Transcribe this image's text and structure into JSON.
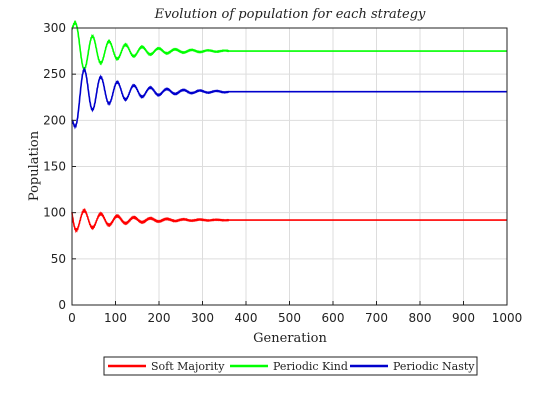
{
  "chart_data": {
    "type": "line",
    "title": "Evolution of population for each strategy",
    "xlabel": "Generation",
    "ylabel": "Population",
    "xlim": [
      0,
      1000
    ],
    "ylim": [
      0,
      300
    ],
    "x_ticks": [
      0,
      100,
      200,
      300,
      400,
      500,
      600,
      700,
      800,
      900,
      1000
    ],
    "y_ticks": [
      0,
      50,
      100,
      150,
      200,
      250,
      300
    ],
    "grid": true,
    "legend_position": "bottom-center",
    "oscillation_period": 38,
    "oscillation_decay_generations": 90,
    "oscillation_end_generation": 360,
    "series": [
      {
        "name": "Soft Majority",
        "color": "#ff0000",
        "start": 100,
        "steady_state": 92,
        "initial_swing": -14,
        "x": [
          0,
          8,
          26,
          45,
          64,
          83,
          102,
          121,
          140,
          160,
          180,
          200,
          250,
          300,
          360,
          500,
          1000
        ],
        "values": [
          100,
          80,
          102,
          85,
          99,
          88,
          96,
          89,
          95,
          90,
          94,
          91,
          93,
          92,
          92,
          92,
          92
        ]
      },
      {
        "name": "Periodic Kind",
        "color": "#00ff00",
        "start": 300,
        "steady_state": 275,
        "initial_swing": 27,
        "x": [
          0,
          5,
          26,
          45,
          64,
          83,
          102,
          121,
          140,
          160,
          180,
          200,
          250,
          300,
          360,
          500,
          1000
        ],
        "values": [
          300,
          297,
          258,
          291,
          263,
          286,
          267,
          283,
          270,
          280,
          272,
          278,
          276,
          275,
          275,
          275,
          275
        ]
      },
      {
        "name": "Periodic Nasty",
        "color": "#0000cc",
        "start": 200,
        "steady_state": 231,
        "initial_swing": -33,
        "x": [
          0,
          19,
          38,
          57,
          76,
          95,
          114,
          133,
          152,
          171,
          190,
          220,
          260,
          300,
          360,
          500,
          1000
        ],
        "values": [
          200,
          257,
          211,
          249,
          220,
          242,
          224,
          238,
          227,
          235,
          229,
          233,
          230,
          231,
          231,
          231,
          231
        ]
      }
    ]
  }
}
